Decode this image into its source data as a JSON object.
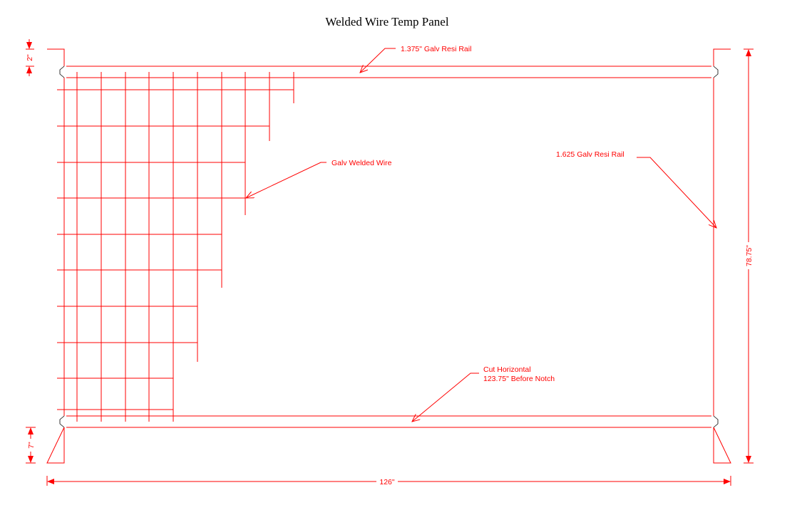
{
  "title": "Welded Wire Temp Panel",
  "labels": {
    "top_rail": "1.375\" Galv Resi Rail",
    "wire": "Galv Welded Wire",
    "post": "1.625 Galv Resi Rail",
    "cut_line1": "Cut Horizontal",
    "cut_line2": "123.75\" Before Notch"
  },
  "dimensions": {
    "top_offset": "2\"",
    "bottom_offset": "7\"",
    "height": "78.75\"",
    "width": "126\""
  },
  "colors": {
    "drawing": "#ff0000",
    "notch": "#000000"
  }
}
